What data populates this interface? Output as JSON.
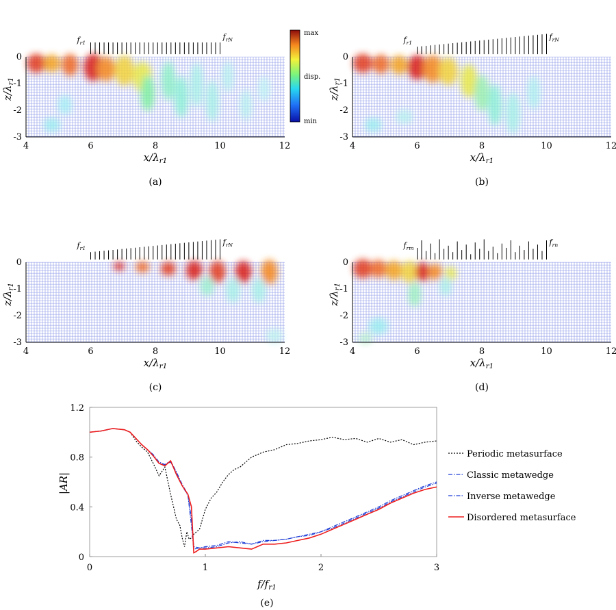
{
  "panels": [
    {
      "id": "a",
      "caption": "(a)",
      "xlabel": "x/λr1",
      "ylabel": "z/λr1",
      "xticks": [
        "4",
        "6",
        "8",
        "10",
        "12"
      ],
      "yticks": [
        "0",
        "-1",
        "-2",
        "-3"
      ],
      "res_left": "fr1",
      "res_right": "frN",
      "profile": "uniform",
      "field": "a"
    },
    {
      "id": "b",
      "caption": "(b)",
      "xlabel": "x/λr1",
      "ylabel": "z/λr1",
      "xticks": [
        "4",
        "6",
        "8",
        "10",
        "12"
      ],
      "yticks": [
        "0",
        "-1",
        "-2",
        "-3"
      ],
      "res_left": "fr1",
      "res_right": "frN",
      "profile": "increasing",
      "field": "b"
    },
    {
      "id": "c",
      "caption": "(c)",
      "xlabel": "x/λr1",
      "ylabel": "z/λr1",
      "xticks": [
        "4",
        "6",
        "8",
        "10",
        "12"
      ],
      "yticks": [
        "0",
        "-1",
        "-2",
        "-3"
      ],
      "res_left": "fr1",
      "res_right": "frN",
      "profile": "increasing",
      "field": "c"
    },
    {
      "id": "d",
      "caption": "(d)",
      "xlabel": "x/λr1",
      "ylabel": "z/λr1",
      "xticks": [
        "4",
        "6",
        "8",
        "10",
        "12"
      ],
      "yticks": [
        "0",
        "-1",
        "-2",
        "-3"
      ],
      "res_left": "frm",
      "res_right": "frn",
      "profile": "random",
      "field": "d"
    }
  ],
  "colorbar": {
    "max": "max",
    "mid": "disp.",
    "min": "min"
  },
  "colors": {
    "grid_blue": "#2a3fd6",
    "periodic": "#000000",
    "classic": "#1f3fd6",
    "inverse": "#1f3fd6",
    "disordered": "#ee1c1c"
  },
  "chart_data": {
    "type": "line",
    "caption": "(e)",
    "xlabel": "f/fr1",
    "ylabel": "|AR|",
    "xlim": [
      0,
      3
    ],
    "ylim": [
      0,
      1.2
    ],
    "xticks": [
      "0",
      "1",
      "2",
      "3"
    ],
    "yticks": [
      "0",
      "0.4",
      "0.8",
      "1.2"
    ],
    "legend_position": "right-outside",
    "series": [
      {
        "name": "Periodic metasurface",
        "style": "dotted",
        "x": [
          0,
          0.1,
          0.2,
          0.3,
          0.35,
          0.4,
          0.45,
          0.5,
          0.55,
          0.6,
          0.65,
          0.7,
          0.72,
          0.75,
          0.78,
          0.8,
          0.82,
          0.84,
          0.86,
          0.88,
          0.9,
          0.95,
          1.0,
          1.05,
          1.1,
          1.15,
          1.2,
          1.25,
          1.3,
          1.35,
          1.4,
          1.45,
          1.5,
          1.6,
          1.7,
          1.8,
          1.9,
          2.0,
          2.1,
          2.2,
          2.3,
          2.4,
          2.5,
          2.6,
          2.7,
          2.8,
          2.9,
          3.0
        ],
        "y": [
          1.0,
          1.01,
          1.03,
          1.02,
          1.0,
          0.93,
          0.88,
          0.84,
          0.75,
          0.65,
          0.72,
          0.5,
          0.42,
          0.3,
          0.25,
          0.15,
          0.08,
          0.2,
          0.14,
          0.15,
          0.18,
          0.22,
          0.38,
          0.47,
          0.52,
          0.6,
          0.66,
          0.7,
          0.72,
          0.76,
          0.8,
          0.82,
          0.84,
          0.86,
          0.9,
          0.91,
          0.93,
          0.94,
          0.96,
          0.94,
          0.95,
          0.92,
          0.95,
          0.92,
          0.94,
          0.9,
          0.92,
          0.93
        ]
      },
      {
        "name": "Classic metawedge",
        "style": "dashdot",
        "x": [
          0,
          0.1,
          0.2,
          0.3,
          0.35,
          0.4,
          0.45,
          0.5,
          0.55,
          0.6,
          0.65,
          0.7,
          0.75,
          0.8,
          0.85,
          0.88,
          0.9,
          0.95,
          1.0,
          1.1,
          1.2,
          1.3,
          1.4,
          1.5,
          1.6,
          1.7,
          1.8,
          1.9,
          2.0,
          2.1,
          2.2,
          2.3,
          2.4,
          2.5,
          2.6,
          2.7,
          2.8,
          2.9,
          3.0
        ],
        "y": [
          1.0,
          1.01,
          1.03,
          1.02,
          1.0,
          0.95,
          0.9,
          0.86,
          0.82,
          0.76,
          0.74,
          0.77,
          0.68,
          0.58,
          0.5,
          0.3,
          0.08,
          0.07,
          0.08,
          0.09,
          0.12,
          0.11,
          0.1,
          0.13,
          0.13,
          0.14,
          0.16,
          0.18,
          0.2,
          0.24,
          0.28,
          0.32,
          0.36,
          0.4,
          0.45,
          0.49,
          0.53,
          0.57,
          0.6
        ]
      },
      {
        "name": "Inverse metawedge",
        "style": "dashdot",
        "x": [
          0,
          0.1,
          0.2,
          0.3,
          0.35,
          0.4,
          0.45,
          0.5,
          0.55,
          0.6,
          0.65,
          0.7,
          0.75,
          0.8,
          0.85,
          0.88,
          0.9,
          0.95,
          1.0,
          1.1,
          1.2,
          1.3,
          1.4,
          1.5,
          1.6,
          1.7,
          1.8,
          1.9,
          2.0,
          2.1,
          2.2,
          2.3,
          2.4,
          2.5,
          2.6,
          2.7,
          2.8,
          2.9,
          3.0
        ],
        "y": [
          1.0,
          1.01,
          1.03,
          1.02,
          1.0,
          0.95,
          0.9,
          0.86,
          0.81,
          0.75,
          0.74,
          0.76,
          0.67,
          0.57,
          0.49,
          0.25,
          0.06,
          0.07,
          0.07,
          0.08,
          0.11,
          0.12,
          0.1,
          0.12,
          0.13,
          0.14,
          0.16,
          0.17,
          0.2,
          0.23,
          0.27,
          0.31,
          0.35,
          0.39,
          0.44,
          0.48,
          0.52,
          0.56,
          0.59
        ]
      },
      {
        "name": "Disordered metasurface",
        "style": "solid",
        "x": [
          0,
          0.1,
          0.2,
          0.3,
          0.35,
          0.4,
          0.45,
          0.5,
          0.55,
          0.6,
          0.65,
          0.7,
          0.75,
          0.8,
          0.85,
          0.88,
          0.9,
          0.92,
          0.95,
          1.0,
          1.1,
          1.2,
          1.3,
          1.4,
          1.5,
          1.6,
          1.7,
          1.8,
          1.9,
          2.0,
          2.1,
          2.2,
          2.3,
          2.4,
          2.5,
          2.6,
          2.7,
          2.8,
          2.9,
          3.0
        ],
        "y": [
          1.0,
          1.01,
          1.03,
          1.02,
          1.0,
          0.95,
          0.9,
          0.86,
          0.81,
          0.75,
          0.73,
          0.77,
          0.66,
          0.57,
          0.5,
          0.4,
          0.03,
          0.04,
          0.06,
          0.06,
          0.07,
          0.08,
          0.07,
          0.06,
          0.1,
          0.1,
          0.11,
          0.13,
          0.15,
          0.18,
          0.22,
          0.26,
          0.3,
          0.34,
          0.38,
          0.43,
          0.47,
          0.51,
          0.54,
          0.56
        ]
      }
    ]
  }
}
